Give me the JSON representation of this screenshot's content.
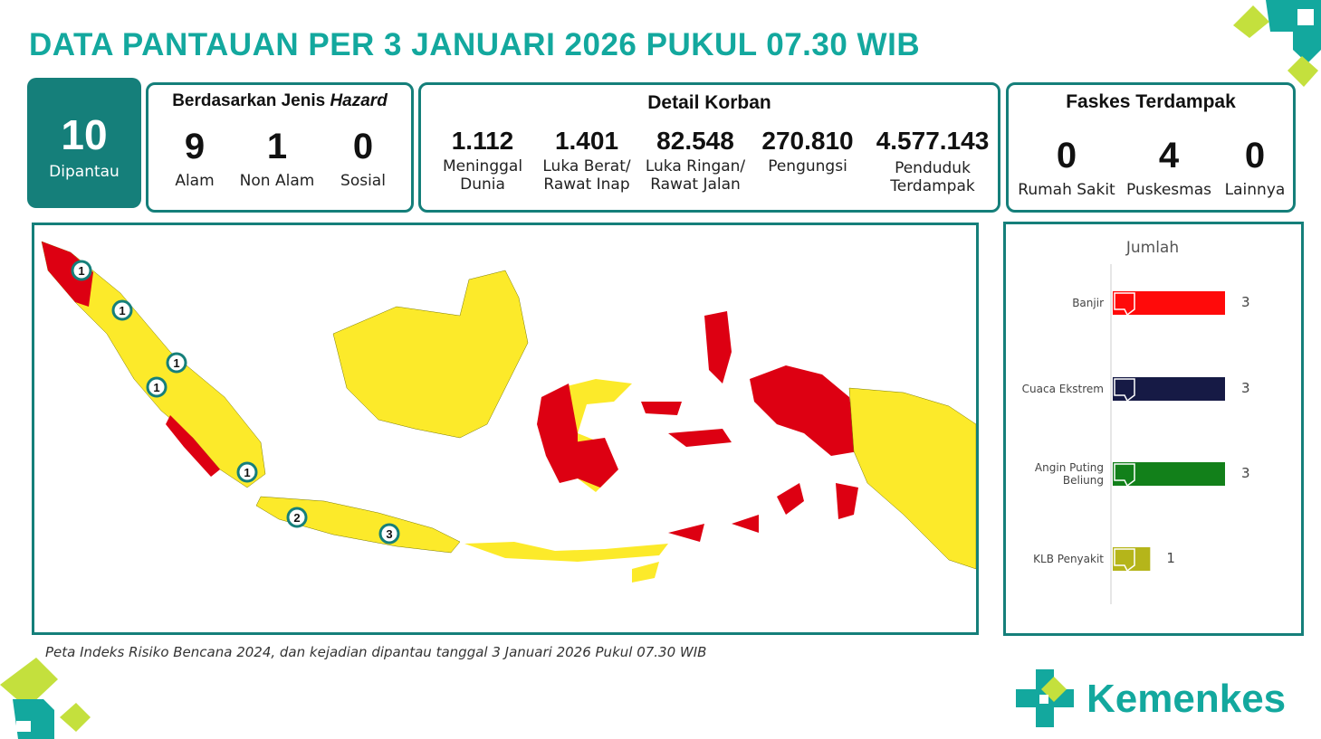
{
  "title": "DATA PANTAUAN PER 3 JANUARI 2026 PUKUL 07.30 WIB",
  "monitored": {
    "count": "10",
    "label": "Dipantau"
  },
  "hazard": {
    "title_prefix": "Berdasarkan Jenis ",
    "title_em": "Hazard",
    "items": [
      {
        "value": "9",
        "label": "Alam"
      },
      {
        "value": "1",
        "label": "Non Alam"
      },
      {
        "value": "0",
        "label": "Sosial"
      }
    ]
  },
  "victims": {
    "title": "Detail Korban",
    "items": [
      {
        "value": "1.112",
        "label1": "Meninggal",
        "label2": "Dunia"
      },
      {
        "value": "1.401",
        "label1": "Luka Berat/",
        "label2": "Rawat Inap"
      },
      {
        "value": "82.548",
        "label1": "Luka Ringan/",
        "label2": "Rawat Jalan"
      },
      {
        "value": "270.810",
        "label1": "Pengungsi",
        "label2": ""
      },
      {
        "value": "4.577.143",
        "label1": "Penduduk",
        "label2": "Terdampak"
      }
    ]
  },
  "facilities": {
    "title": "Faskes Terdampak",
    "items": [
      {
        "value": "0",
        "label": "Rumah Sakit"
      },
      {
        "value": "4",
        "label": "Puskesmas"
      },
      {
        "value": "0",
        "label": "Lainnya"
      }
    ]
  },
  "map": {
    "markers": [
      "1",
      "1",
      "1",
      "1",
      "1",
      "2",
      "3"
    ],
    "colors": {
      "high": "#dd0012",
      "medium": "#fcea2a",
      "marker": "#157f7a"
    }
  },
  "caption": "Peta Indeks Risiko Bencana 2024, dan kejadian dipantau tanggal 3 Januari 2026 Pukul 07.30 WIB",
  "brand": {
    "name": "Kemenkes",
    "color": "#13a89e"
  },
  "chart_data": {
    "type": "bar",
    "title": "Jumlah",
    "categories": [
      "Banjir",
      "Cuaca Ekstrem",
      "Angin Puting Beliung",
      "KLB Penyakit"
    ],
    "values": [
      3,
      3,
      3,
      1
    ],
    "value_labels": [
      "3",
      "3",
      "3",
      "1"
    ],
    "colors": [
      "#ff0a0a",
      "#161a45",
      "#12801a",
      "#b5b51a"
    ],
    "icons": [
      "flood-icon",
      "storm-icon",
      "tornado-icon",
      "disease-icon"
    ]
  }
}
